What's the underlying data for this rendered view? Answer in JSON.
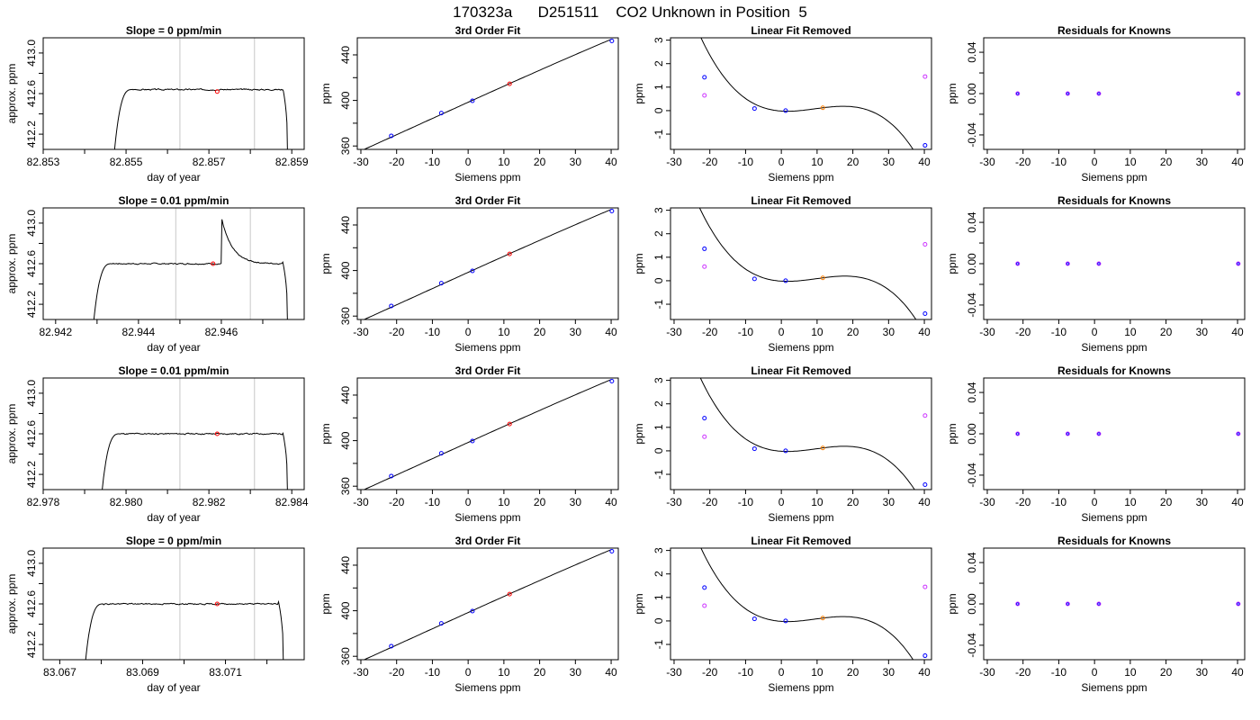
{
  "page_title": "170323a      D251511    CO2 Unknown in Position  5",
  "colors": {
    "trace": "#000000",
    "window_line": "#c8c8c8",
    "unknown": "#ff0000",
    "known": "#0000ff",
    "fit_curve": "#000000",
    "unknown_resid": "#ff7f00",
    "secondary_points": "#cc33ff"
  },
  "chart_data": [
    {
      "type": "line",
      "panel": "raw",
      "row": 0,
      "title": "Slope =  0  ppm/min",
      "xlabel": "day of year",
      "ylabel": "approx. ppm",
      "xlim": [
        82.853,
        82.8593
      ],
      "ylim": [
        412.05,
        413.15
      ],
      "xticks": [
        82.853,
        82.854,
        82.855,
        82.856,
        82.857,
        82.858,
        82.859
      ],
      "xtick_labels": [
        "82.853",
        "",
        "82.855",
        "",
        "82.857",
        "",
        "82.859"
      ],
      "yticks": [
        412.2,
        412.4,
        412.6,
        412.8,
        413.0
      ],
      "ytick_labels": [
        "412.2",
        "",
        "412.6",
        "",
        "413.0"
      ],
      "vlines": [
        82.8563,
        82.8581
      ],
      "trace": {
        "start": 82.8547,
        "end": 82.8589,
        "level": 412.64,
        "rise": 0.00045,
        "fall": 0.00012,
        "noise": 0.012,
        "seed": 3
      },
      "unknown_point": {
        "x": 82.8572,
        "y": 412.62
      }
    },
    {
      "type": "line",
      "panel": "raw",
      "row": 1,
      "title": "Slope =  0.01  ppm/min",
      "xlabel": "day of year",
      "ylabel": "approx. ppm",
      "xlim": [
        82.9417,
        82.948
      ],
      "ylim": [
        412.05,
        413.15
      ],
      "xticks": [
        82.942,
        82.943,
        82.944,
        82.945,
        82.946,
        82.947
      ],
      "xtick_labels": [
        "82.942",
        "",
        "82.944",
        "",
        "82.946",
        ""
      ],
      "yticks": [
        412.2,
        412.4,
        412.6,
        412.8,
        413.0
      ],
      "ytick_labels": [
        "412.2",
        "",
        "412.6",
        "",
        "413.0"
      ],
      "vlines": [
        82.9449,
        82.9467
      ],
      "trace": {
        "start": 82.9429,
        "end": 82.9476,
        "level": 412.6,
        "rise": 0.00045,
        "fall": 0.00012,
        "noise": 0.012,
        "seed": 7
      },
      "spike": {
        "x": 82.946,
        "peak": 413.06,
        "decay": 0.00025
      },
      "unknown_point": {
        "x": 82.9458,
        "y": 412.6
      }
    },
    {
      "type": "line",
      "panel": "raw",
      "row": 2,
      "title": "Slope =  0.01  ppm/min",
      "xlabel": "day of year",
      "ylabel": "approx. ppm",
      "xlim": [
        82.978,
        82.9843
      ],
      "ylim": [
        412.05,
        413.15
      ],
      "xticks": [
        82.978,
        82.979,
        82.98,
        82.981,
        82.982,
        82.983,
        82.984
      ],
      "xtick_labels": [
        "82.978",
        "",
        "82.980",
        "",
        "82.982",
        "",
        "82.984"
      ],
      "yticks": [
        412.2,
        412.4,
        412.6,
        412.8,
        413.0
      ],
      "ytick_labels": [
        "412.2",
        "",
        "412.6",
        "",
        "413.0"
      ],
      "vlines": [
        82.9813,
        82.9831
      ],
      "trace": {
        "start": 82.9794,
        "end": 82.9839,
        "level": 412.6,
        "rise": 0.00045,
        "fall": 0.00012,
        "noise": 0.012,
        "seed": 11
      },
      "unknown_point": {
        "x": 82.9822,
        "y": 412.6
      }
    },
    {
      "type": "line",
      "panel": "raw",
      "row": 3,
      "title": "Slope =  0  ppm/min",
      "xlabel": "day of year",
      "ylabel": "approx. ppm",
      "xlim": [
        83.0666,
        83.0729
      ],
      "ylim": [
        412.05,
        413.15
      ],
      "xticks": [
        83.067,
        83.068,
        83.069,
        83.07,
        83.071,
        83.072
      ],
      "xtick_labels": [
        "83.067",
        "",
        "83.069",
        "",
        "83.071",
        ""
      ],
      "yticks": [
        412.2,
        412.4,
        412.6,
        412.8,
        413.0
      ],
      "ytick_labels": [
        "412.2",
        "",
        "412.6",
        "",
        "413.0"
      ],
      "vlines": [
        83.0699,
        83.0717
      ],
      "trace": {
        "start": 83.0676,
        "end": 83.0724,
        "level": 412.6,
        "rise": 0.00045,
        "fall": 0.00012,
        "noise": 0.012,
        "seed": 19
      },
      "unknown_point": {
        "x": 83.0708,
        "y": 412.6
      }
    },
    {
      "type": "scatter",
      "panel": "fit",
      "row": 0,
      "title": "3rd Order Fit",
      "xlabel": "Siemens ppm",
      "ylabel": "ppm",
      "xlim": [
        -31,
        42
      ],
      "ylim": [
        357,
        455
      ],
      "xticks": [
        -30,
        -20,
        -10,
        0,
        10,
        20,
        30,
        40
      ],
      "yticks": [
        360,
        380,
        400,
        420,
        440
      ],
      "ytick_labels": [
        "360",
        "",
        "400",
        "",
        "440"
      ],
      "curve": {
        "xrange": [
          -30,
          40
        ],
        "coef": [
          398.4,
          1.42,
          -0.0005,
          -1.2e-05
        ]
      },
      "knowns": {
        "x": [
          -21.5,
          -7.5,
          1.2,
          40.2
        ],
        "y": [
          368.9,
          388.9,
          399.7,
          452.2
        ]
      },
      "unknown": {
        "x": [
          11.6
        ],
        "y": [
          414.6
        ]
      }
    },
    {
      "type": "scatter",
      "panel": "fit",
      "row": 1,
      "title": "3rd Order Fit",
      "xlabel": "Siemens ppm",
      "ylabel": "ppm",
      "xlim": [
        -31,
        42
      ],
      "ylim": [
        357,
        455
      ],
      "xticks": [
        -30,
        -20,
        -10,
        0,
        10,
        20,
        30,
        40
      ],
      "yticks": [
        360,
        380,
        400,
        420,
        440
      ],
      "ytick_labels": [
        "360",
        "",
        "400",
        "",
        "440"
      ],
      "curve": {
        "xrange": [
          -30,
          40
        ],
        "coef": [
          398.4,
          1.42,
          -0.0005,
          -1.2e-05
        ]
      },
      "knowns": {
        "x": [
          -21.5,
          -7.5,
          1.2,
          40.2
        ],
        "y": [
          368.9,
          388.9,
          399.7,
          452.2
        ]
      },
      "unknown": {
        "x": [
          11.6
        ],
        "y": [
          414.6
        ]
      }
    },
    {
      "type": "scatter",
      "panel": "fit",
      "row": 2,
      "title": "3rd Order Fit",
      "xlabel": "Siemens ppm",
      "ylabel": "ppm",
      "xlim": [
        -31,
        42
      ],
      "ylim": [
        357,
        455
      ],
      "xticks": [
        -30,
        -20,
        -10,
        0,
        10,
        20,
        30,
        40
      ],
      "yticks": [
        360,
        380,
        400,
        420,
        440
      ],
      "ytick_labels": [
        "360",
        "",
        "400",
        "",
        "440"
      ],
      "curve": {
        "xrange": [
          -30,
          40
        ],
        "coef": [
          398.4,
          1.42,
          -0.0005,
          -1.2e-05
        ]
      },
      "knowns": {
        "x": [
          -21.5,
          -7.5,
          1.2,
          40.2
        ],
        "y": [
          368.9,
          388.9,
          399.7,
          452.2
        ]
      },
      "unknown": {
        "x": [
          11.6
        ],
        "y": [
          414.6
        ]
      }
    },
    {
      "type": "scatter",
      "panel": "fit",
      "row": 3,
      "title": "3rd Order Fit",
      "xlabel": "Siemens ppm",
      "ylabel": "ppm",
      "xlim": [
        -31,
        42
      ],
      "ylim": [
        357,
        455
      ],
      "xticks": [
        -30,
        -20,
        -10,
        0,
        10,
        20,
        30,
        40
      ],
      "yticks": [
        360,
        380,
        400,
        420,
        440
      ],
      "ytick_labels": [
        "360",
        "",
        "400",
        "",
        "440"
      ],
      "curve": {
        "xrange": [
          -30,
          40
        ],
        "coef": [
          398.4,
          1.42,
          -0.0005,
          -1.2e-05
        ]
      },
      "knowns": {
        "x": [
          -21.5,
          -7.5,
          1.2,
          40.2
        ],
        "y": [
          368.9,
          388.9,
          399.7,
          452.2
        ]
      },
      "unknown": {
        "x": [
          11.6
        ],
        "y": [
          414.6
        ]
      }
    },
    {
      "type": "scatter",
      "panel": "linfit",
      "row": 0,
      "title": "Linear Fit Removed",
      "xlabel": "Siemens ppm",
      "ylabel": "ppm",
      "xlim": [
        -31,
        42
      ],
      "ylim": [
        -1.65,
        3.1
      ],
      "xticks": [
        -30,
        -20,
        -10,
        0,
        10,
        20,
        30,
        40
      ],
      "yticks": [
        -1,
        0,
        1,
        2,
        3
      ],
      "ytick_labels": [
        "-1",
        "0",
        "1",
        "2",
        "3"
      ],
      "curve": {
        "xrange": [
          -29.5,
          40.5
        ],
        "coef": [
          -0.0178,
          -0.01013,
          0.003204,
          -0.0001121
        ]
      },
      "knowns": {
        "x": [
          -21.5,
          -7.5,
          1.2,
          40.2
        ],
        "y": [
          1.42,
          0.09,
          0.0,
          -1.48
        ]
      },
      "unknown": {
        "x": [
          11.6
        ],
        "y": [
          0.12
        ]
      },
      "secondary": {
        "x": [
          -21.5,
          40.2
        ],
        "y": [
          0.65,
          1.45
        ]
      }
    },
    {
      "type": "scatter",
      "panel": "linfit",
      "row": 1,
      "title": "Linear Fit Removed",
      "xlabel": "Siemens ppm",
      "ylabel": "ppm",
      "xlim": [
        -31,
        42
      ],
      "ylim": [
        -1.65,
        3.1
      ],
      "xticks": [
        -30,
        -20,
        -10,
        0,
        10,
        20,
        30,
        40
      ],
      "yticks": [
        -1,
        0,
        1,
        2,
        3
      ],
      "ytick_labels": [
        "-1",
        "0",
        "1",
        "2",
        "3"
      ],
      "curve": {
        "xrange": [
          -29.5,
          40.5
        ],
        "coef": [
          -0.0178,
          -0.00964,
          0.003112,
          -0.0001064
        ]
      },
      "knowns": {
        "x": [
          -21.5,
          -7.5,
          1.2,
          40.2
        ],
        "y": [
          1.36,
          0.08,
          0.0,
          -1.4
        ]
      },
      "unknown": {
        "x": [
          11.6
        ],
        "y": [
          0.12
        ]
      },
      "secondary": {
        "x": [
          -21.5,
          40.2
        ],
        "y": [
          0.6,
          1.55
        ]
      }
    },
    {
      "type": "scatter",
      "panel": "linfit",
      "row": 2,
      "title": "Linear Fit Removed",
      "xlabel": "Siemens ppm",
      "ylabel": "ppm",
      "xlim": [
        -31,
        42
      ],
      "ylim": [
        -1.65,
        3.1
      ],
      "xticks": [
        -30,
        -20,
        -10,
        0,
        10,
        20,
        30,
        40
      ],
      "yticks": [
        -1,
        0,
        1,
        2,
        3
      ],
      "ytick_labels": [
        "-1",
        "0",
        "1",
        "2",
        "3"
      ],
      "curve": {
        "xrange": [
          -29.5,
          40.5
        ],
        "coef": [
          -0.0178,
          -0.0099,
          0.003172,
          -0.0001095
        ]
      },
      "knowns": {
        "x": [
          -21.5,
          -7.5,
          1.2,
          40.2
        ],
        "y": [
          1.39,
          0.09,
          0.0,
          -1.44
        ]
      },
      "unknown": {
        "x": [
          11.6
        ],
        "y": [
          0.12
        ]
      },
      "secondary": {
        "x": [
          -21.5,
          40.2
        ],
        "y": [
          0.6,
          1.5
        ]
      }
    },
    {
      "type": "scatter",
      "panel": "linfit",
      "row": 3,
      "title": "Linear Fit Removed",
      "xlabel": "Siemens ppm",
      "ylabel": "ppm",
      "xlim": [
        -31,
        42
      ],
      "ylim": [
        -1.65,
        3.1
      ],
      "xticks": [
        -30,
        -20,
        -10,
        0,
        10,
        20,
        30,
        40
      ],
      "yticks": [
        -1,
        0,
        1,
        2,
        3
      ],
      "ytick_labels": [
        "-1",
        "0",
        "1",
        "2",
        "3"
      ],
      "curve": {
        "xrange": [
          -29.5,
          40.5
        ],
        "coef": [
          -0.0178,
          -0.01013,
          0.003204,
          -0.0001121
        ]
      },
      "knowns": {
        "x": [
          -21.5,
          -7.5,
          1.2,
          40.2
        ],
        "y": [
          1.42,
          0.09,
          0.0,
          -1.48
        ]
      },
      "unknown": {
        "x": [
          11.6
        ],
        "y": [
          0.12
        ]
      },
      "secondary": {
        "x": [
          -21.5,
          40.2
        ],
        "y": [
          0.65,
          1.45
        ]
      }
    },
    {
      "type": "scatter",
      "panel": "resid",
      "row": 0,
      "title": "Residuals for Knowns",
      "xlabel": "Siemens ppm",
      "ylabel": "ppm",
      "xlim": [
        -31,
        42
      ],
      "ylim": [
        -0.054,
        0.054
      ],
      "xticks": [
        -30,
        -20,
        -10,
        0,
        10,
        20,
        30,
        40
      ],
      "yticks": [
        -0.04,
        -0.02,
        0.0,
        0.02,
        0.04
      ],
      "ytick_labels": [
        "-0.04",
        "",
        "0.00",
        "",
        "0.04"
      ],
      "knowns": {
        "x": [
          -21.5,
          -7.5,
          1.2,
          40.2
        ],
        "y": [
          0,
          0,
          0,
          0
        ]
      }
    },
    {
      "type": "scatter",
      "panel": "resid",
      "row": 1,
      "title": "Residuals for Knowns",
      "xlabel": "Siemens ppm",
      "ylabel": "ppm",
      "xlim": [
        -31,
        42
      ],
      "ylim": [
        -0.054,
        0.054
      ],
      "xticks": [
        -30,
        -20,
        -10,
        0,
        10,
        20,
        30,
        40
      ],
      "yticks": [
        -0.04,
        -0.02,
        0.0,
        0.02,
        0.04
      ],
      "ytick_labels": [
        "-0.04",
        "",
        "0.00",
        "",
        "0.04"
      ],
      "knowns": {
        "x": [
          -21.5,
          -7.5,
          1.2,
          40.2
        ],
        "y": [
          0,
          0,
          0,
          0
        ]
      }
    },
    {
      "type": "scatter",
      "panel": "resid",
      "row": 2,
      "title": "Residuals for Knowns",
      "xlabel": "Siemens ppm",
      "ylabel": "ppm",
      "xlim": [
        -31,
        42
      ],
      "ylim": [
        -0.054,
        0.054
      ],
      "xticks": [
        -30,
        -20,
        -10,
        0,
        10,
        20,
        30,
        40
      ],
      "yticks": [
        -0.04,
        -0.02,
        0.0,
        0.02,
        0.04
      ],
      "ytick_labels": [
        "-0.04",
        "",
        "0.00",
        "",
        "0.04"
      ],
      "knowns": {
        "x": [
          -21.5,
          -7.5,
          1.2,
          40.2
        ],
        "y": [
          0,
          0,
          0,
          0
        ]
      }
    },
    {
      "type": "scatter",
      "panel": "resid",
      "row": 3,
      "title": "Residuals for Knowns",
      "xlabel": "Siemens ppm",
      "ylabel": "ppm",
      "xlim": [
        -31,
        42
      ],
      "ylim": [
        -0.054,
        0.054
      ],
      "xticks": [
        -30,
        -20,
        -10,
        0,
        10,
        20,
        30,
        40
      ],
      "yticks": [
        -0.04,
        -0.02,
        0.0,
        0.02,
        0.04
      ],
      "ytick_labels": [
        "-0.04",
        "",
        "0.00",
        "",
        "0.04"
      ],
      "knowns": {
        "x": [
          -21.5,
          -7.5,
          1.2,
          40.2
        ],
        "y": [
          0,
          0,
          0,
          0
        ]
      }
    }
  ]
}
